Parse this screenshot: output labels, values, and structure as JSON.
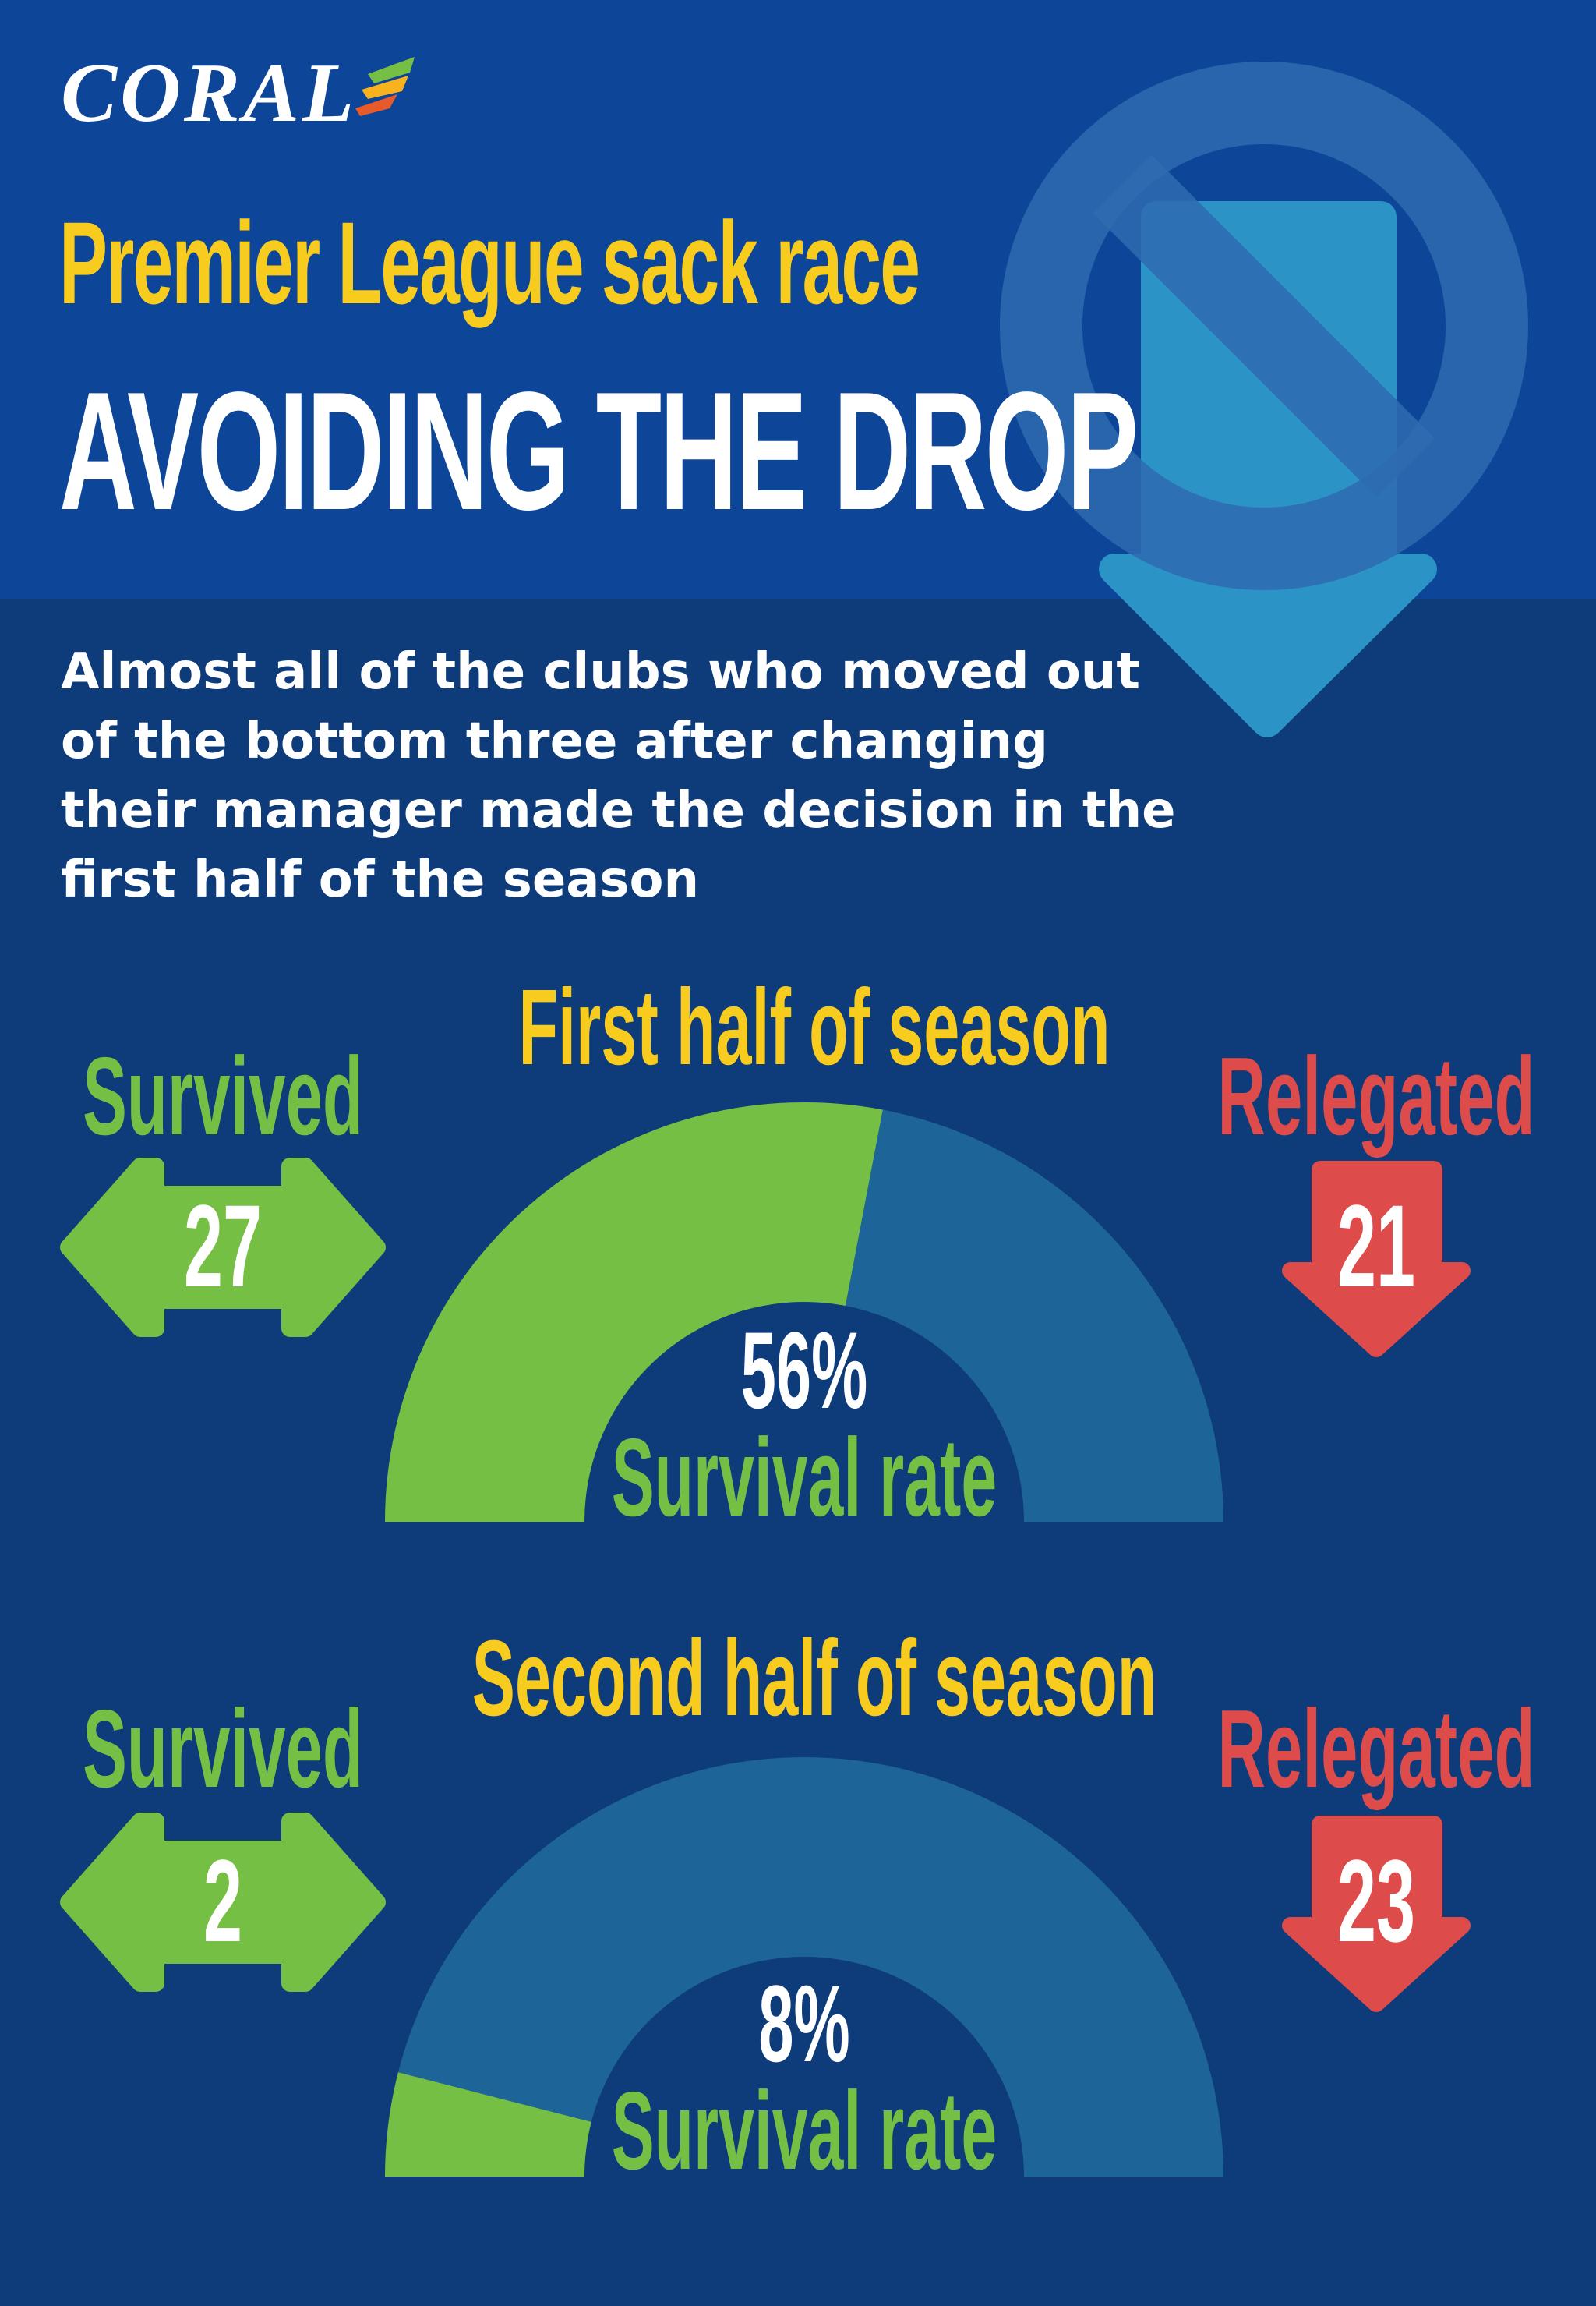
{
  "brand": {
    "name": "CORAL"
  },
  "header": {
    "subtitle": "Premier League sack race",
    "title": "AVOIDING THE DROP"
  },
  "intro": "Almost all of the clubs who moved out of the bottom three after changing their manager made the decision in the first half of the season",
  "colors": {
    "survived": "#76bf45",
    "relegated": "#de4b4b",
    "remainder": "#1d6498",
    "heading": "#f7cc1e",
    "background": "#0e3b7a",
    "header_band": "#0d4598"
  },
  "icons": {
    "background": "no-relegation-icon",
    "survived": "double-arrow-icon",
    "relegated": "down-arrow-icon"
  },
  "chart_data": [
    {
      "type": "pie",
      "title": "First half of season",
      "survived_label": "Survived",
      "relegated_label": "Relegated",
      "survived": 27,
      "relegated": 21,
      "rate_value": "56%",
      "rate_label": "Survival rate",
      "survival_fraction": 0.56
    },
    {
      "type": "pie",
      "title": "Second half of season",
      "survived_label": "Survived",
      "relegated_label": "Relegated",
      "survived": 2,
      "relegated": 23,
      "rate_value": "8%",
      "rate_label": "Survival rate",
      "survival_fraction": 0.08
    }
  ]
}
